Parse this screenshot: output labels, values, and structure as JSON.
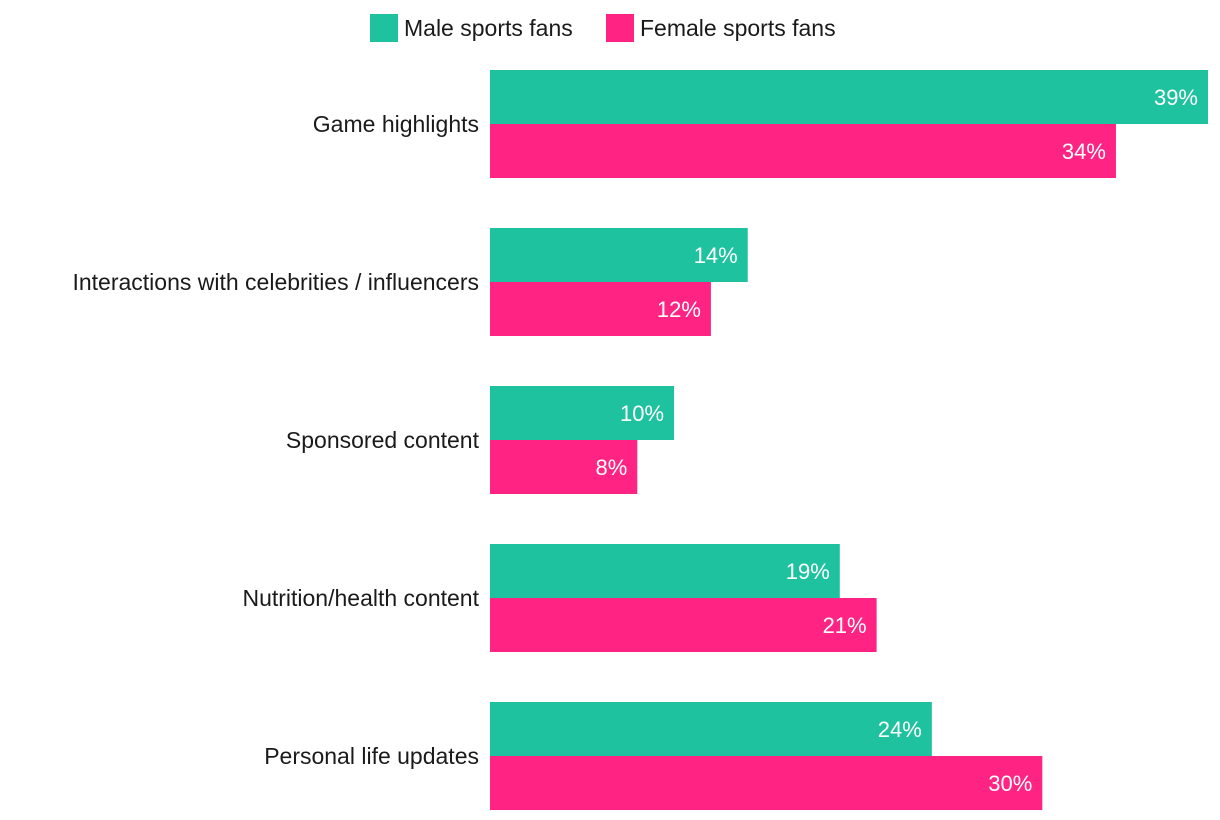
{
  "chart_data": {
    "type": "bar",
    "orientation": "horizontal",
    "categories": [
      "Game highlights",
      "Interactions with celebrities / influencers",
      "Sponsored content",
      "Nutrition/health content",
      "Personal life updates"
    ],
    "series": [
      {
        "name": "Male sports fans",
        "color": "#1fc29f",
        "values": [
          39,
          14,
          10,
          19,
          24
        ],
        "labels": [
          "39%",
          "14%",
          "10%",
          "19%",
          "24%"
        ]
      },
      {
        "name": "Female sports fans",
        "color": "#ff2483",
        "values": [
          34,
          12,
          8,
          21,
          30
        ],
        "labels": [
          "34%",
          "12%",
          "8%",
          "21%",
          "30%"
        ]
      }
    ],
    "xlim": [
      0,
      39
    ],
    "grid": false,
    "legend_position": "top-center",
    "title": "",
    "xlabel": "",
    "ylabel": ""
  }
}
